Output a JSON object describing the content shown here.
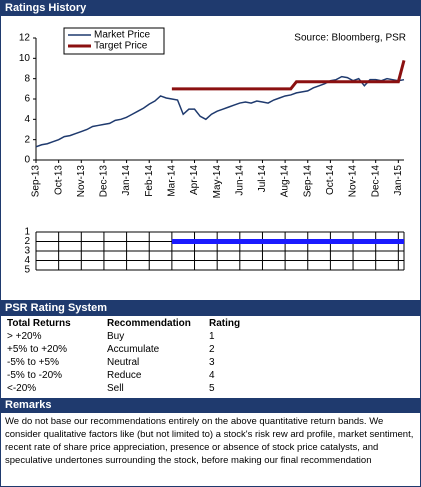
{
  "header": {
    "title": "Ratings History"
  },
  "chart_data": [
    {
      "type": "line",
      "annotation": "Source: Bloomberg, PSR",
      "ylim": [
        0,
        12
      ],
      "yticks": [
        0,
        2,
        4,
        6,
        8,
        10,
        12
      ],
      "legend": "top-left",
      "categories": [
        "Sep-13",
        null,
        null,
        null,
        "Oct-13",
        null,
        null,
        null,
        "Nov-13",
        null,
        null,
        null,
        "Dec-13",
        null,
        null,
        null,
        "Jan-14",
        null,
        null,
        null,
        "Feb-14",
        null,
        null,
        null,
        "Mar-14",
        null,
        null,
        null,
        "Apr-14",
        null,
        null,
        null,
        "May-14",
        null,
        null,
        null,
        "Jun-14",
        null,
        null,
        null,
        "Jul-14",
        null,
        null,
        null,
        "Aug-14",
        null,
        null,
        null,
        "Sep-14",
        null,
        null,
        null,
        "Oct-14",
        null,
        null,
        null,
        "Nov-14",
        null,
        null,
        null,
        "Dec-14",
        null,
        null,
        null,
        "Jan-15",
        null
      ],
      "series": [
        {
          "name": "Market Price",
          "color": "#1f3a6e",
          "width": 1.5,
          "values": [
            1.3,
            1.5,
            1.6,
            1.8,
            2.0,
            2.3,
            2.4,
            2.6,
            2.8,
            3.0,
            3.3,
            3.4,
            3.5,
            3.6,
            3.9,
            4.0,
            4.2,
            4.5,
            4.8,
            5.1,
            5.5,
            5.8,
            6.3,
            6.1,
            6.0,
            5.9,
            4.5,
            5.0,
            5.0,
            4.3,
            4.0,
            4.5,
            4.8,
            5.0,
            5.2,
            5.4,
            5.6,
            5.7,
            5.6,
            5.8,
            5.7,
            5.6,
            5.9,
            6.1,
            6.3,
            6.4,
            6.6,
            6.7,
            6.8,
            7.1,
            7.3,
            7.5,
            7.8,
            7.9,
            8.2,
            8.1,
            7.8,
            8.0,
            7.3,
            7.9,
            7.9,
            7.8,
            8.0,
            7.9,
            7.8,
            7.9
          ]
        },
        {
          "name": "Target Price",
          "color": "#8b1010",
          "width": 3,
          "values": [
            null,
            null,
            null,
            null,
            null,
            null,
            null,
            null,
            null,
            null,
            null,
            null,
            null,
            null,
            null,
            null,
            null,
            null,
            null,
            null,
            null,
            null,
            null,
            null,
            7.0,
            7.0,
            7.0,
            7.0,
            7.0,
            7.0,
            7.0,
            7.0,
            7.0,
            7.0,
            7.0,
            7.0,
            7.0,
            7.0,
            7.0,
            7.0,
            7.0,
            7.0,
            7.0,
            7.0,
            7.0,
            7.0,
            7.7,
            7.7,
            7.7,
            7.7,
            7.7,
            7.7,
            7.7,
            7.7,
            7.7,
            7.7,
            7.7,
            7.7,
            7.7,
            7.7,
            7.7,
            7.7,
            7.7,
            7.7,
            7.7,
            9.8
          ]
        }
      ]
    },
    {
      "type": "line",
      "ylim": [
        5,
        1
      ],
      "yticks": [
        1,
        2,
        3,
        4,
        5
      ],
      "grid": true,
      "series": [
        {
          "color": "#1a1aff",
          "width": 5,
          "values": [
            null,
            null,
            null,
            null,
            null,
            null,
            null,
            null,
            null,
            null,
            null,
            null,
            null,
            null,
            null,
            null,
            null,
            null,
            null,
            null,
            null,
            null,
            null,
            null,
            2,
            2,
            2,
            2,
            2,
            2,
            2,
            2,
            2,
            2,
            2,
            2,
            2,
            2,
            2,
            2,
            2,
            2,
            2,
            2,
            2,
            2,
            2,
            2,
            2,
            2,
            2,
            2,
            2,
            2,
            2,
            2,
            2,
            2,
            2,
            2,
            2,
            2,
            2,
            2,
            2,
            2
          ]
        }
      ]
    }
  ],
  "rating_system": {
    "title": "PSR Rating System",
    "columns": [
      "Total Returns",
      "Recommendation",
      "Rating"
    ],
    "rows": [
      [
        "> +20%",
        "Buy",
        "1"
      ],
      [
        "+5% to +20%",
        "Accumulate",
        "2"
      ],
      [
        "-5% to +5%",
        "Neutral",
        "3"
      ],
      [
        "-5% to -20%",
        "Reduce",
        "4"
      ],
      [
        "<-20%",
        "Sell",
        "5"
      ]
    ]
  },
  "remarks": {
    "title": "Remarks",
    "text": "We do not base our recommendations entirely on the  above quantitative return bands. We consider qualitative factors like (but not limited to) a stock's risk rew ard profile, market sentiment, recent rate of share price appreciation, presence or absence of stock price catalysts, and speculative undertones surrounding the stock, before making our final recommendation"
  }
}
